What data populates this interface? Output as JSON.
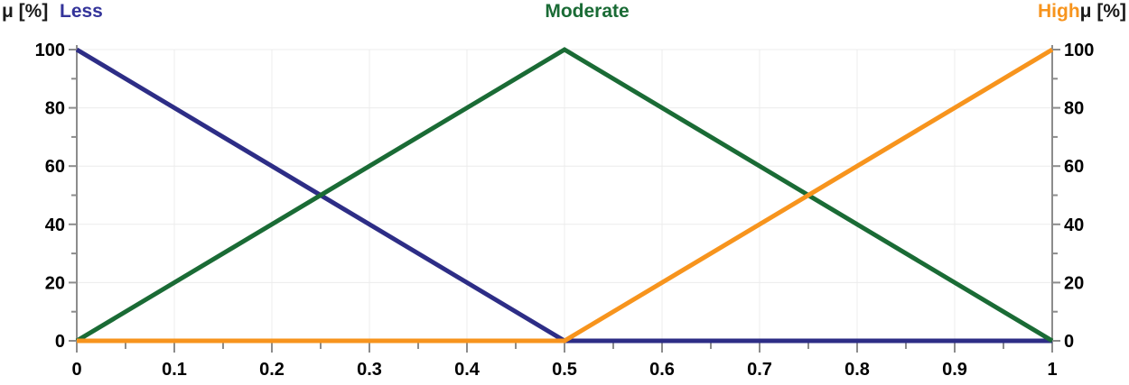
{
  "header": {
    "left_axis_title": "μ [%]",
    "right_axis_title": "μ [%]",
    "title_color": "#1a1a1a",
    "series_labels": [
      {
        "text": "Less",
        "color": "#34349a"
      },
      {
        "text": "Moderate",
        "color": "#1a6b35"
      },
      {
        "text": "High",
        "color": "#f7941d"
      }
    ]
  },
  "chart_data": {
    "type": "line",
    "title": "",
    "xlabel": "",
    "ylabel": "μ [%]",
    "xlim": [
      0,
      1
    ],
    "ylim": [
      0,
      100
    ],
    "grid": true,
    "legend_position": "top (colored text labels: Less left, Moderate center, High right)",
    "x_ticks": {
      "major": [
        {
          "v": 0,
          "label": "0"
        },
        {
          "v": 0.1,
          "label": "0.1"
        },
        {
          "v": 0.2,
          "label": "0.2"
        },
        {
          "v": 0.3,
          "label": "0.3"
        },
        {
          "v": 0.4,
          "label": "0.4"
        },
        {
          "v": 0.5,
          "label": "0.5"
        },
        {
          "v": 0.6,
          "label": "0.6"
        },
        {
          "v": 0.7,
          "label": "0.7"
        },
        {
          "v": 0.8,
          "label": "0.8"
        },
        {
          "v": 0.9,
          "label": "0.9"
        },
        {
          "v": 1,
          "label": "1"
        }
      ],
      "minor": [
        0.05,
        0.15,
        0.25,
        0.35,
        0.45,
        0.55,
        0.65,
        0.75,
        0.85,
        0.95
      ]
    },
    "y_ticks": {
      "major": [
        {
          "v": 0,
          "label": "0"
        },
        {
          "v": 20,
          "label": "20"
        },
        {
          "v": 40,
          "label": "40"
        },
        {
          "v": 60,
          "label": "60"
        },
        {
          "v": 80,
          "label": "80"
        },
        {
          "v": 100,
          "label": "100"
        }
      ],
      "minor": [
        10,
        30,
        50,
        70,
        90
      ]
    },
    "series": [
      {
        "name": "Less",
        "color": "#2d2d86",
        "points": [
          [
            0,
            100
          ],
          [
            0.5,
            0
          ],
          [
            1,
            0
          ]
        ]
      },
      {
        "name": "Moderate",
        "color": "#1a6b35",
        "points": [
          [
            0,
            0
          ],
          [
            0.5,
            100
          ],
          [
            1,
            0
          ]
        ]
      },
      {
        "name": "High",
        "color": "#f7941d",
        "points": [
          [
            0,
            0
          ],
          [
            0.5,
            0
          ],
          [
            1,
            100
          ]
        ]
      }
    ],
    "colors": {
      "axis": "#8c8c8c",
      "grid": "#ececec",
      "tick_label": "#000000",
      "background": "#ffffff"
    }
  }
}
